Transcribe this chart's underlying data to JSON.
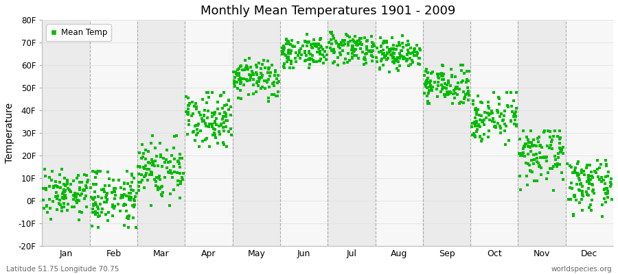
{
  "title": "Monthly Mean Temperatures 1901 - 2009",
  "ylabel": "Temperature",
  "bottom_left": "Latitude 51.75 Longitude 70.75",
  "bottom_right": "worldspecies.org",
  "legend_label": "Mean Temp",
  "dot_color": "#00bb00",
  "bg_color": "#ffffff",
  "band_color_odd": "#ebebeb",
  "band_color_even": "#f7f7f7",
  "ylim": [
    -20,
    80
  ],
  "yticks": [
    -20,
    -10,
    0,
    10,
    20,
    30,
    40,
    50,
    60,
    70,
    80
  ],
  "ytick_labels": [
    "-20F",
    "-10F",
    "0F",
    "10F",
    "20F",
    "30F",
    "40F",
    "50F",
    "60F",
    "70F",
    "80F"
  ],
  "months": [
    "Jan",
    "Feb",
    "Mar",
    "Apr",
    "May",
    "Jun",
    "Jul",
    "Aug",
    "Sep",
    "Oct",
    "Nov",
    "Dec"
  ],
  "month_means": [
    3.5,
    2.0,
    14.0,
    37.0,
    54.0,
    66.0,
    68.0,
    65.0,
    51.0,
    37.0,
    20.0,
    7.0
  ],
  "month_stds": [
    5.0,
    6.0,
    7.0,
    6.0,
    4.5,
    3.5,
    3.5,
    3.5,
    4.0,
    5.0,
    6.0,
    5.5
  ],
  "month_mins": [
    -17,
    -17,
    -2,
    24,
    44,
    59,
    60,
    57,
    43,
    25,
    4,
    -12
  ],
  "month_maxs": [
    14,
    13,
    29,
    48,
    63,
    75,
    75,
    73,
    60,
    48,
    31,
    18
  ],
  "n_points": 109,
  "random_seed": 7,
  "dot_size": 8,
  "dashed_line_color": "#888888",
  "grid_color": "#dddddd"
}
